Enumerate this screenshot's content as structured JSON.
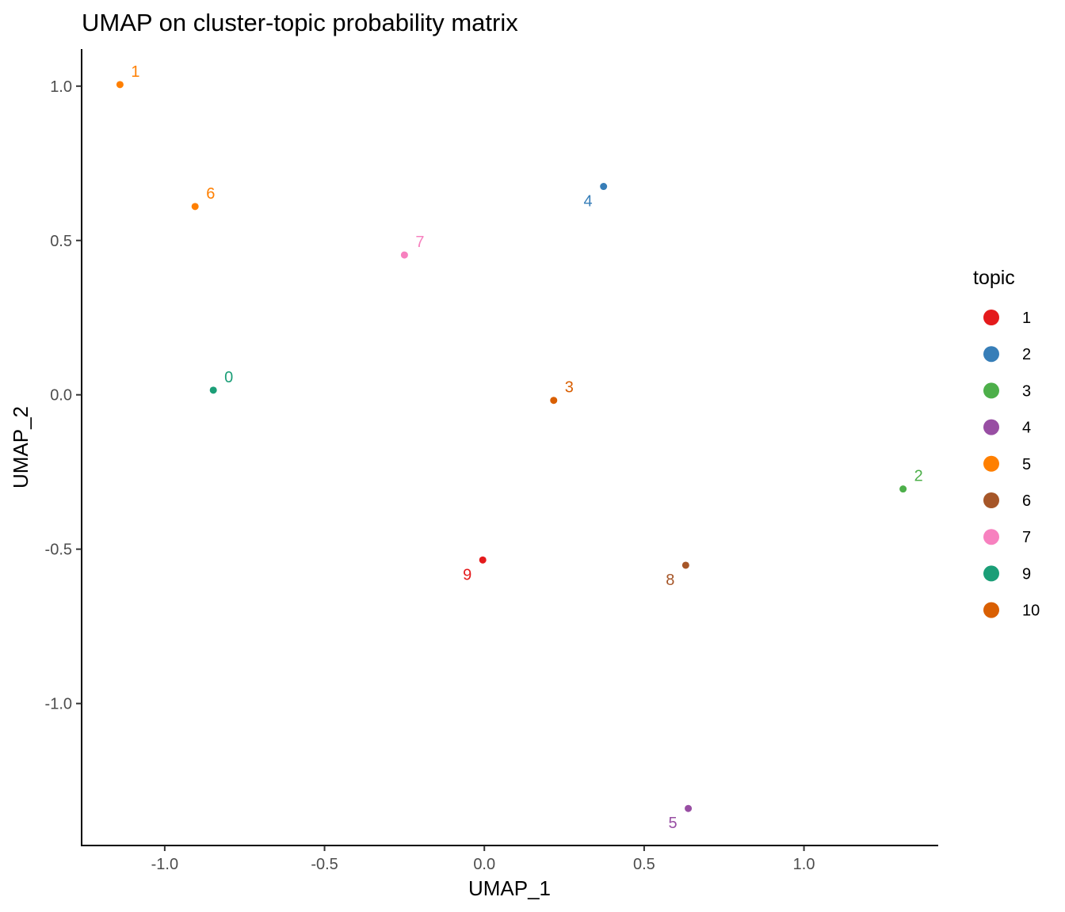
{
  "chart_data": {
    "type": "scatter",
    "title": "UMAP on cluster-topic probability matrix",
    "xlabel": "UMAP_1",
    "ylabel": "UMAP_2",
    "xlim": [
      -1.26,
      1.42
    ],
    "ylim": [
      -1.46,
      1.12
    ],
    "x_ticks": [
      -1.0,
      -0.5,
      0.0,
      0.5,
      1.0
    ],
    "x_tick_labels": [
      "-1.0",
      "-0.5",
      "0.0",
      "0.5",
      "1.0"
    ],
    "y_ticks": [
      1.0,
      0.5,
      0.0,
      -0.5,
      -1.0
    ],
    "y_tick_labels": [
      "1.0",
      "0.5",
      "0.0",
      "-0.5",
      "-1.0"
    ],
    "grid": false,
    "legend": {
      "title": "topic",
      "position": "right",
      "entries": [
        {
          "label": "1",
          "color": "#e41a1c"
        },
        {
          "label": "2",
          "color": "#377eb8"
        },
        {
          "label": "3",
          "color": "#4daf4a"
        },
        {
          "label": "4",
          "color": "#984ea3"
        },
        {
          "label": "5",
          "color": "#ff7f00"
        },
        {
          "label": "6",
          "color": "#a65628"
        },
        {
          "label": "7",
          "color": "#f781bf"
        },
        {
          "label": "9",
          "color": "#1b9e77"
        },
        {
          "label": "10",
          "color": "#d95f02"
        }
      ]
    },
    "points": [
      {
        "label": "1",
        "x": -1.14,
        "y": 1.005,
        "topic": "5",
        "label_pos": "upper-right"
      },
      {
        "label": "6",
        "x": -0.905,
        "y": 0.61,
        "topic": "5",
        "label_pos": "upper-right"
      },
      {
        "label": "7",
        "x": -0.25,
        "y": 0.453,
        "topic": "7",
        "label_pos": "upper-right"
      },
      {
        "label": "4",
        "x": 0.373,
        "y": 0.675,
        "topic": "2",
        "label_pos": "lower-left"
      },
      {
        "label": "0",
        "x": -0.848,
        "y": 0.015,
        "topic": "9",
        "label_pos": "upper-right"
      },
      {
        "label": "3",
        "x": 0.217,
        "y": -0.018,
        "topic": "10",
        "label_pos": "upper-right"
      },
      {
        "label": "2",
        "x": 1.31,
        "y": -0.305,
        "topic": "3",
        "label_pos": "upper-right"
      },
      {
        "label": "9",
        "x": -0.005,
        "y": -0.535,
        "topic": "1",
        "label_pos": "lower-left"
      },
      {
        "label": "8",
        "x": 0.63,
        "y": -0.552,
        "topic": "6",
        "label_pos": "lower-left"
      },
      {
        "label": "5",
        "x": 0.638,
        "y": -1.34,
        "topic": "4",
        "label_pos": "lower-left"
      }
    ]
  }
}
